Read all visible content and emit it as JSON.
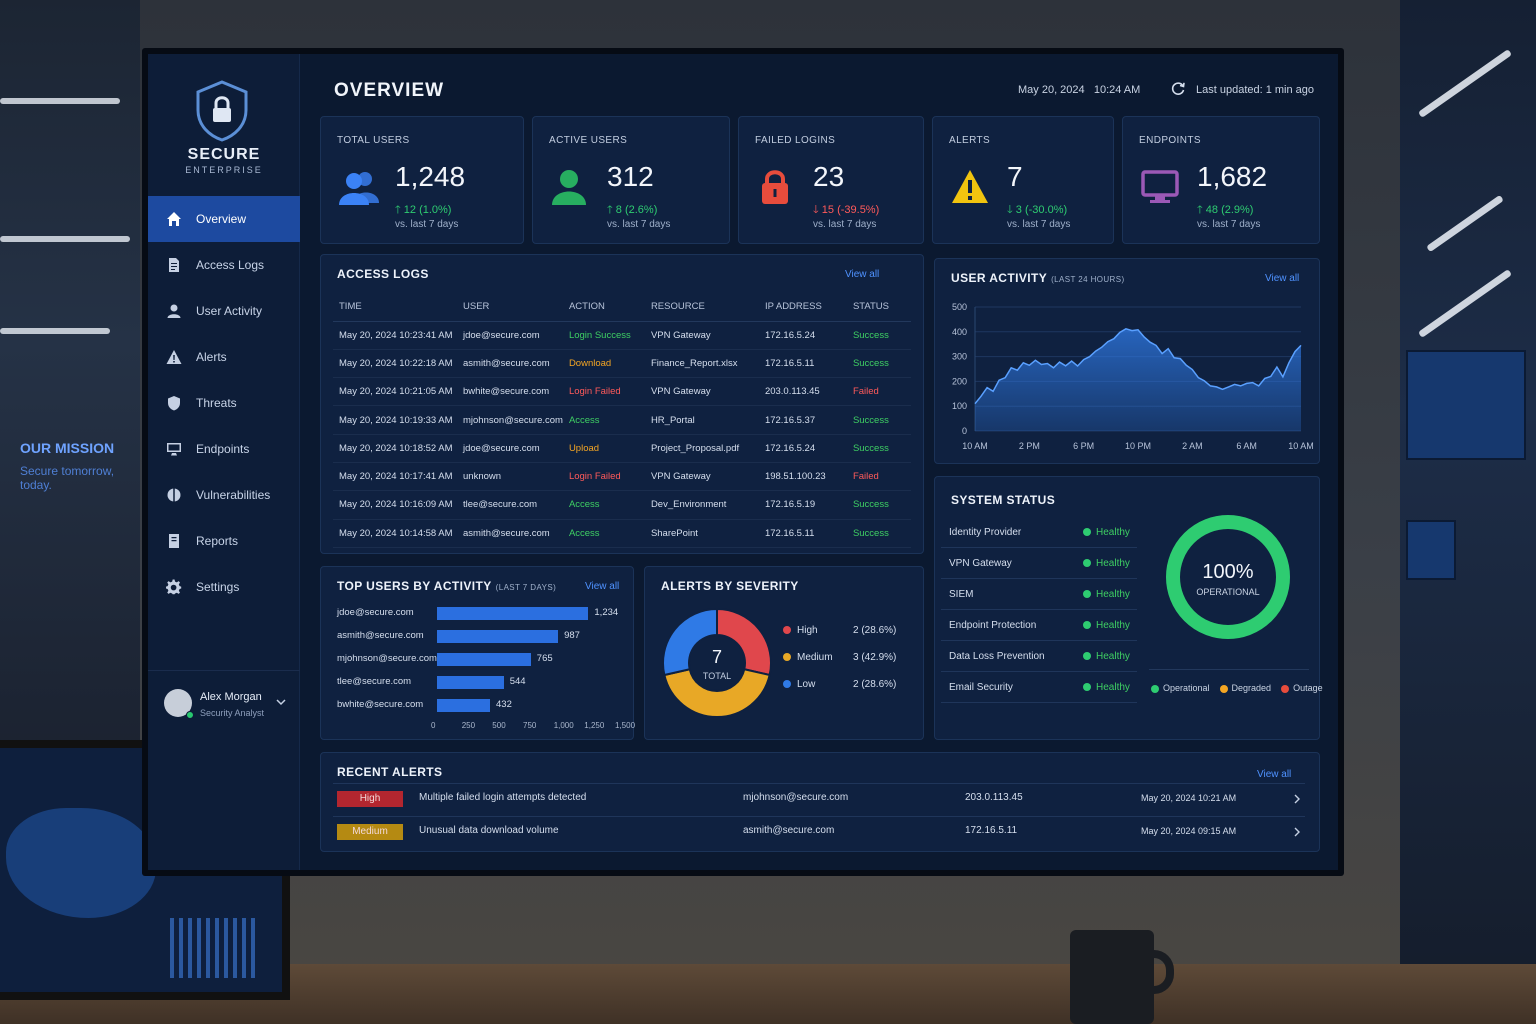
{
  "sidebar": {
    "brand": "SECURE",
    "brand_sub": "ENTERPRISE",
    "items": [
      {
        "label": "Overview",
        "icon": "home-icon",
        "active": true
      },
      {
        "label": "Access Logs",
        "icon": "document-icon"
      },
      {
        "label": "User Activity",
        "icon": "user-icon"
      },
      {
        "label": "Alerts",
        "icon": "warning-icon"
      },
      {
        "label": "Threats",
        "icon": "shield-icon"
      },
      {
        "label": "Endpoints",
        "icon": "monitor-icon"
      },
      {
        "label": "Vulnerabilities",
        "icon": "bug-icon"
      },
      {
        "label": "Reports",
        "icon": "report-icon"
      },
      {
        "label": "Settings",
        "icon": "gear-icon"
      }
    ],
    "user": {
      "name": "Alex Morgan",
      "role": "Security Analyst"
    }
  },
  "header": {
    "title": "OVERVIEW",
    "date": "May 20, 2024",
    "time": "10:24 AM",
    "last_updated": "Last updated: 1 min ago"
  },
  "kpis": [
    {
      "label": "TOTAL USERS",
      "value": "1,248",
      "change": "12 (1.0%)",
      "direction": "up",
      "sub": "vs. last 7 days",
      "icon": "users-icon",
      "color": "#3b82f6"
    },
    {
      "label": "ACTIVE USERS",
      "value": "312",
      "change": "8 (2.6%)",
      "direction": "up",
      "sub": "vs. last 7 days",
      "icon": "user-icon",
      "color": "#27ae60"
    },
    {
      "label": "FAILED LOGINS",
      "value": "23",
      "change": "15 (-39.5%)",
      "direction": "down",
      "sub": "vs. last 7 days",
      "icon": "lock-icon",
      "color": "#e74c3c"
    },
    {
      "label": "ALERTS",
      "value": "7",
      "change": "3 (-30.0%)",
      "direction": "down",
      "sub": "vs. last 7 days",
      "icon": "warning-icon",
      "color": "#f1c40f"
    },
    {
      "label": "ENDPOINTS",
      "value": "1,682",
      "change": "48 (2.9%)",
      "direction": "up",
      "sub": "vs. last 7 days",
      "icon": "monitor-icon",
      "color": "#9b59b6"
    }
  ],
  "access_logs": {
    "title": "ACCESS LOGS",
    "view_all": "View all",
    "columns": [
      "TIME",
      "USER",
      "ACTION",
      "RESOURCE",
      "IP ADDRESS",
      "STATUS"
    ],
    "rows": [
      {
        "time": "May 20, 2024 10:23:41 AM",
        "user": "jdoe@secure.com",
        "action": "Login Success",
        "resource": "VPN Gateway",
        "ip": "172.16.5.24",
        "status": "Success"
      },
      {
        "time": "May 20, 2024 10:22:18 AM",
        "user": "asmith@secure.com",
        "action": "Download",
        "resource": "Finance_Report.xlsx",
        "ip": "172.16.5.11",
        "status": "Success"
      },
      {
        "time": "May 20, 2024 10:21:05 AM",
        "user": "bwhite@secure.com",
        "action": "Login Failed",
        "resource": "VPN Gateway",
        "ip": "203.0.113.45",
        "status": "Failed"
      },
      {
        "time": "May 20, 2024 10:19:33 AM",
        "user": "mjohnson@secure.com",
        "action": "Access",
        "resource": "HR_Portal",
        "ip": "172.16.5.37",
        "status": "Success"
      },
      {
        "time": "May 20, 2024 10:18:52 AM",
        "user": "jdoe@secure.com",
        "action": "Upload",
        "resource": "Project_Proposal.pdf",
        "ip": "172.16.5.24",
        "status": "Success"
      },
      {
        "time": "May 20, 2024 10:17:41 AM",
        "user": "unknown",
        "action": "Login Failed",
        "resource": "VPN Gateway",
        "ip": "198.51.100.23",
        "status": "Failed"
      },
      {
        "time": "May 20, 2024 10:16:09 AM",
        "user": "tlee@secure.com",
        "action": "Access",
        "resource": "Dev_Environment",
        "ip": "172.16.5.19",
        "status": "Success"
      },
      {
        "time": "May 20, 2024 10:14:58 AM",
        "user": "asmith@secure.com",
        "action": "Access",
        "resource": "SharePoint",
        "ip": "172.16.5.11",
        "status": "Success"
      }
    ]
  },
  "user_activity": {
    "title": "USER ACTIVITY",
    "subtitle": "(LAST 24 HOURS)",
    "view_all": "View all"
  },
  "top_users": {
    "title": "TOP USERS BY ACTIVITY",
    "subtitle": "(LAST 7 DAYS)",
    "view_all": "View all"
  },
  "alerts_severity": {
    "title": "ALERTS BY SEVERITY",
    "total": "7",
    "total_label": "TOTAL"
  },
  "system_status": {
    "title": "SYSTEM STATUS",
    "items": [
      {
        "name": "Identity Provider",
        "status": "Healthy"
      },
      {
        "name": "VPN Gateway",
        "status": "Healthy"
      },
      {
        "name": "SIEM",
        "status": "Healthy"
      },
      {
        "name": "Endpoint Protection",
        "status": "Healthy"
      },
      {
        "name": "Data Loss Prevention",
        "status": "Healthy"
      },
      {
        "name": "Email Security",
        "status": "Healthy"
      }
    ],
    "gauge_value": "100%",
    "gauge_label": "OPERATIONAL",
    "gauge_fraction": 1.0,
    "legend": [
      {
        "label": "Operational",
        "color": "#2ecc71"
      },
      {
        "label": "Degraded",
        "color": "#f5a623"
      },
      {
        "label": "Outage",
        "color": "#e74c3c"
      }
    ]
  },
  "recent_alerts": {
    "title": "RECENT ALERTS",
    "view_all": "View all",
    "rows": [
      {
        "severity": "High",
        "message": "Multiple failed login attempts detected",
        "user": "mjohnson@secure.com",
        "ip": "203.0.113.45",
        "time": "May 20, 2024 10:21 AM",
        "color": "#b3262f"
      },
      {
        "severity": "Medium",
        "message": "Unusual data download volume",
        "user": "asmith@secure.com",
        "ip": "172.16.5.11",
        "time": "May 20, 2024 09:15 AM",
        "color": "#b58a12"
      }
    ]
  },
  "backdrop": {
    "mission_title": "OUR MISSION",
    "mission_text": "Secure tomorrow, today."
  },
  "chart_data": [
    {
      "type": "area",
      "title": "USER ACTIVITY",
      "subtitle": "(LAST 24 HOURS)",
      "x_ticks": [
        "10 AM",
        "2 PM",
        "6 PM",
        "10 PM",
        "2 AM",
        "6 AM",
        "10 AM"
      ],
      "y_ticks": [
        0,
        100,
        200,
        300,
        400,
        500
      ],
      "ylim": [
        0,
        500
      ],
      "values": [
        110,
        140,
        175,
        160,
        205,
        215,
        255,
        245,
        275,
        265,
        285,
        268,
        272,
        255,
        278,
        263,
        282,
        262,
        288,
        300,
        322,
        338,
        360,
        372,
        398,
        412,
        405,
        408,
        380,
        358,
        345,
        312,
        332,
        295,
        292,
        265,
        248,
        215,
        202,
        182,
        178,
        168,
        178,
        188,
        182,
        192,
        195,
        182,
        212,
        220,
        258,
        218,
        275,
        320,
        345
      ],
      "color": "#2f7ae6",
      "grid": true
    },
    {
      "type": "bar",
      "orientation": "horizontal",
      "title": "TOP USERS BY ACTIVITY",
      "categories": [
        "jdoe@secure.com",
        "asmith@secure.com",
        "mjohnson@secure.com",
        "tlee@secure.com",
        "bwhite@secure.com"
      ],
      "values": [
        1234,
        987,
        765,
        544,
        432
      ],
      "labels": [
        "1,234",
        "987",
        "765",
        "544",
        "432"
      ],
      "x_ticks": [
        "0",
        "250",
        "500",
        "750",
        "1,000",
        "1,250",
        "1,500"
      ],
      "xlim": [
        0,
        1500
      ],
      "color": "#2b6fe0"
    },
    {
      "type": "pie",
      "title": "ALERTS BY SEVERITY",
      "slices": [
        {
          "name": "High",
          "value": 2,
          "label": "2 (28.6%)",
          "color": "#e0474c"
        },
        {
          "name": "Medium",
          "value": 3,
          "label": "3 (42.9%)",
          "color": "#e8a826"
        },
        {
          "name": "Low",
          "value": 2,
          "label": "2 (28.6%)",
          "color": "#2f7ae6"
        }
      ]
    }
  ]
}
